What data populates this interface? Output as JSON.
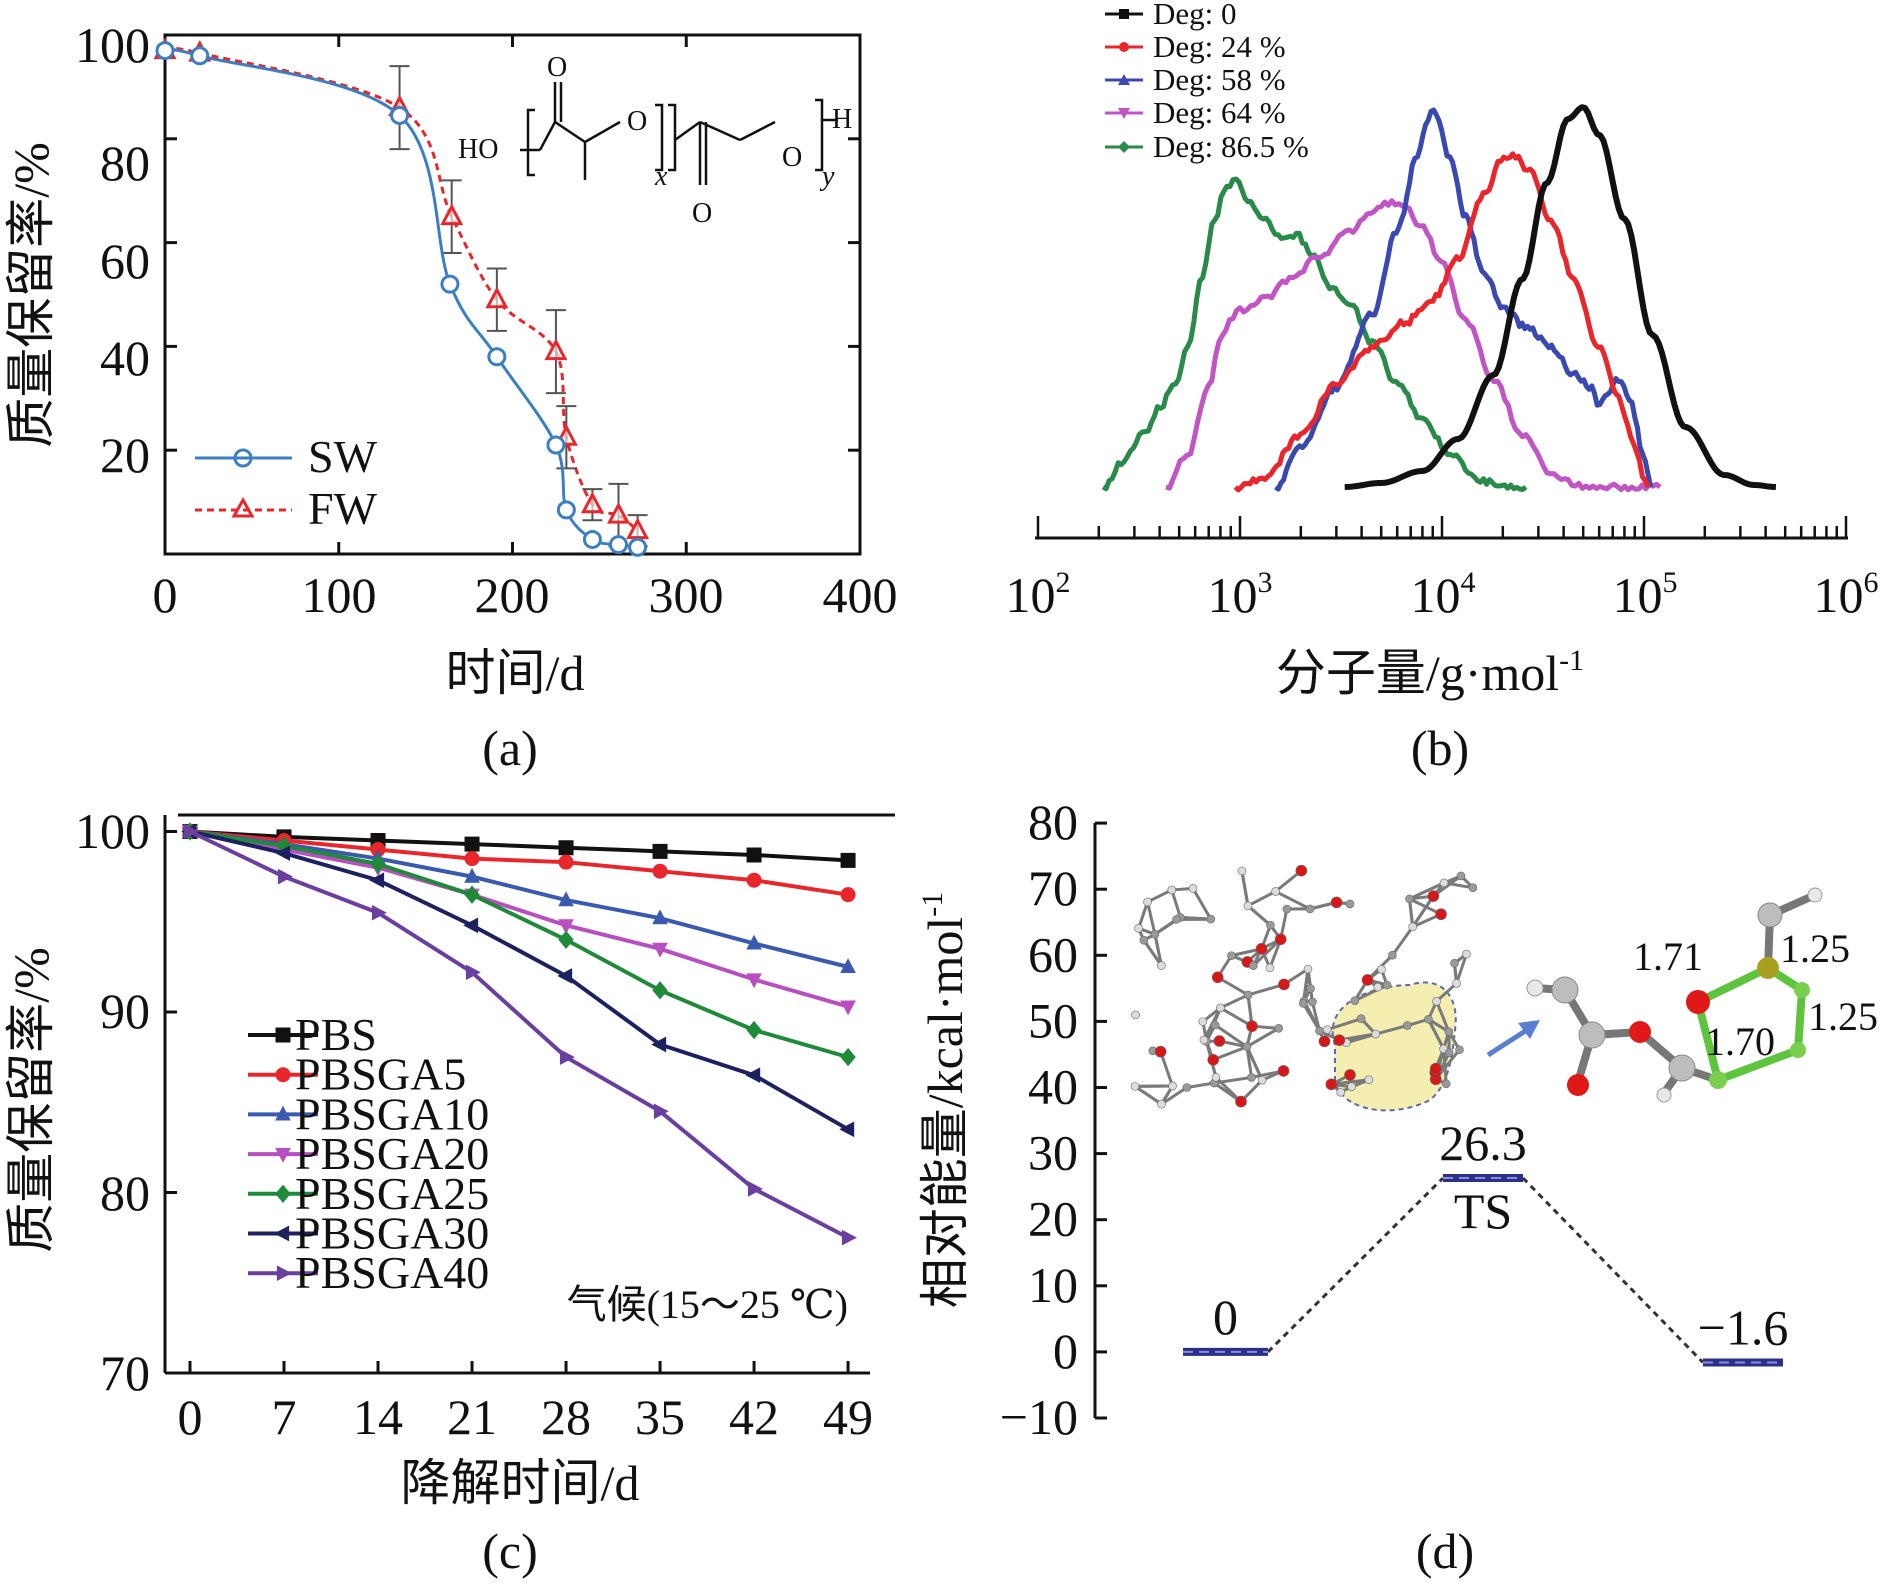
{
  "panels": [
    {
      "panel_label": "(a)",
      "chart_data": {
        "type": "line",
        "xlabel": "时间/d",
        "ylabel": "质量保留率/%",
        "xlim": [
          0,
          400
        ],
        "ylim": [
          0,
          100
        ],
        "xticks": [
          "0",
          "100",
          "200",
          "300",
          "400"
        ],
        "yticks": [
          "20",
          "40",
          "60",
          "80",
          "100"
        ],
        "grid": false,
        "legend_position": "lower-left",
        "series": [
          {
            "name": "SW",
            "color": "#3a7fc1",
            "marker": "circle",
            "line_style": "solid",
            "x": [
              0,
              20,
              135,
              164,
              191,
              225,
              231,
              246,
              261,
              272
            ],
            "y": [
              97,
              96,
              84.5,
              52,
              38,
              21,
              8.5,
              2.8,
              1.8,
              1.3
            ],
            "error": [
              0,
              0,
              0,
              0,
              0,
              0,
              0,
              0,
              0,
              0
            ]
          },
          {
            "name": "FW",
            "color": "#e8262b",
            "marker": "triangle",
            "line_style": "dashed",
            "x": [
              0,
              20,
              135,
              165,
              191,
              225,
              231,
              246,
              261,
              272
            ],
            "y": [
              97,
              96.5,
              86,
              65,
              49,
              39,
              22.5,
              9.5,
              7.5,
              4.5
            ],
            "error": [
              0,
              0,
              8,
              7,
              6,
              8,
              6,
              3,
              6,
              3
            ]
          }
        ],
        "annotations": [
          "HO",
          "O",
          "O",
          "O",
          "O",
          "H",
          "x",
          "y"
        ]
      }
    },
    {
      "panel_label": "(b)",
      "chart_data": {
        "type": "line",
        "xlabel": "分子量/g·mol",
        "xlabel_sup": "-1",
        "ylabel": "",
        "xscale": "log",
        "xlim": [
          100,
          1000000
        ],
        "xticks": [
          {
            "base": "10",
            "exp": "2",
            "value": 100
          },
          {
            "base": "10",
            "exp": "3",
            "value": 1000
          },
          {
            "base": "10",
            "exp": "4",
            "value": 10000
          },
          {
            "base": "10",
            "exp": "5",
            "value": 100000
          },
          {
            "base": "10",
            "exp": "6",
            "value": 1000000
          }
        ],
        "y_axis_shown": false,
        "legend_position": "top-left",
        "series": [
          {
            "name": "Deg: 0",
            "color": "#111111",
            "marker": "square",
            "x": [
              3300,
              5000,
              8000,
              12000,
              18000,
              25000,
              33000,
              42000,
              50000,
              60000,
              80000,
              110000,
              160000,
              250000,
              350000,
              450000
            ],
            "y": [
              0,
              1,
              4,
              12,
              28,
              52,
              76,
              92,
              95,
              88,
              67,
              38,
              15,
              3,
              0.5,
              0
            ]
          },
          {
            "name": "Deg: 24 %",
            "color": "#e8262b",
            "marker": "circle",
            "x": [
              950,
              1300,
              2000,
              3000,
              4500,
              6500,
              9000,
              12000,
              16000,
              20000,
              23000,
              27000,
              35000,
              45000,
              60000,
              75000,
              90000,
              100000,
              105000
            ],
            "y": [
              0,
              2,
              13,
              26,
              35,
              41,
              47,
              57,
              73,
              82,
              83,
              79,
              66,
              52,
              35,
              22,
              10,
              2,
              0
            ]
          },
          {
            "name": "Deg: 58 %",
            "color": "#3a49b0",
            "marker": "triangle",
            "x": [
              1500,
              2000,
              3000,
              4500,
              6000,
              7500,
              8500,
              9000,
              9500,
              11000,
              13000,
              16000,
              20000,
              26000,
              35000,
              45000,
              55000,
              60000,
              65000,
              75000,
              85000,
              100000,
              108000
            ],
            "y": [
              0,
              10,
              25,
              43,
              64,
              82,
              92,
              95,
              92,
              82,
              68,
              54,
              45,
              40,
              35,
              28,
              25,
              20,
              23,
              27,
              22,
              8,
              0
            ]
          },
          {
            "name": "Deg: 64 %",
            "color": "#c155c4",
            "marker": "triangle-down",
            "x": [
              430,
              550,
              700,
              800,
              900,
              1000,
              1300,
              1800,
              2500,
              3500,
              4500,
              5500,
              6500,
              8000,
              10000,
              13000,
              18000,
              25000,
              35000,
              50000,
              80000,
              120000
            ],
            "y": [
              0,
              8,
              25,
              37,
              42,
              44,
              47,
              52,
              58,
              64,
              69,
              71,
              70,
              65,
              56,
              42,
              27,
              13,
              3,
              0,
              0,
              0
            ]
          },
          {
            "name": "Deg: 86.5 %",
            "color": "#2a8a4a",
            "marker": "diamond",
            "x": [
              210,
              260,
              330,
              400,
              480,
              560,
              650,
              750,
              850,
              950,
              1100,
              1300,
              1600,
              1900,
              2300,
              2800,
              3500,
              4500,
              6000,
              8000,
              11000,
              15000,
              20000,
              26000
            ],
            "y": [
              0,
              6,
              13,
              20,
              26,
              36,
              53,
              67,
              75,
              77,
              72,
              67,
              62,
              63,
              58,
              50,
              46,
              36,
              26,
              17,
              8,
              2,
              0,
              0
            ]
          }
        ]
      }
    },
    {
      "panel_label": "(c)",
      "chart_data": {
        "type": "line",
        "xlabel": "降解时间/d",
        "ylabel": "质量保留率/%",
        "xlim": [
          -3,
          51
        ],
        "ylim": [
          70,
          102
        ],
        "xticks": [
          "0",
          "7",
          "14",
          "21",
          "28",
          "35",
          "42",
          "49"
        ],
        "yticks": [
          "70",
          "80",
          "90",
          "100"
        ],
        "grid": false,
        "legend_position": "lower-left",
        "annotation": "气候(15～25 ℃)",
        "x": [
          0,
          7,
          14,
          21,
          28,
          35,
          42,
          49
        ],
        "series": [
          {
            "name": "PBS",
            "color": "#111111",
            "marker": "square",
            "values": [
              100,
              99.7,
              99.5,
              99.3,
              99.1,
              98.9,
              98.7,
              98.4
            ]
          },
          {
            "name": "PBSGA5",
            "color": "#e8262b",
            "marker": "circle",
            "values": [
              100,
              99.5,
              99.0,
              98.5,
              98.3,
              97.8,
              97.3,
              96.5
            ]
          },
          {
            "name": "PBSGA10",
            "color": "#3a5ab0",
            "marker": "triangle",
            "values": [
              100,
              99.3,
              98.5,
              97.5,
              96.2,
              95.2,
              93.8,
              92.5
            ]
          },
          {
            "name": "PBSGA20",
            "color": "#b84fc0",
            "marker": "triangle-down",
            "values": [
              100,
              99.0,
              98.0,
              96.5,
              94.8,
              93.5,
              91.8,
              90.3
            ]
          },
          {
            "name": "PBSGA25",
            "color": "#1e8a3a",
            "marker": "diamond",
            "values": [
              100,
              99.2,
              98.2,
              96.5,
              94.0,
              91.2,
              89.0,
              87.5
            ]
          },
          {
            "name": "PBSGA30",
            "color": "#1c2260",
            "marker": "triangle-left",
            "values": [
              100,
              98.8,
              97.3,
              94.8,
              92.0,
              88.2,
              86.5,
              83.5
            ]
          },
          {
            "name": "PBSGA40",
            "color": "#6b3fa0",
            "marker": "triangle-right",
            "values": [
              100,
              97.5,
              95.5,
              92.2,
              87.5,
              84.5,
              80.2,
              77.5
            ]
          }
        ]
      }
    },
    {
      "panel_label": "(d)",
      "chart_data": {
        "type": "line",
        "ylabel": "相对能量/kcal·mol",
        "ylabel_sup": "-1",
        "ylim": [
          -10,
          80
        ],
        "yticks": [
          "−10",
          "0",
          "10",
          "20",
          "30",
          "40",
          "50",
          "60",
          "70",
          "80"
        ],
        "levels": [
          {
            "value": 0,
            "label": "0"
          },
          {
            "value": 26.3,
            "label": "26.3",
            "sublabel": "TS"
          },
          {
            "value": -1.6,
            "label": "−1.6"
          }
        ],
        "level_color": "#2b2f8a",
        "bond_lengths": [
          "1.71",
          "1.25",
          "1.25",
          "1.70"
        ]
      }
    }
  ]
}
